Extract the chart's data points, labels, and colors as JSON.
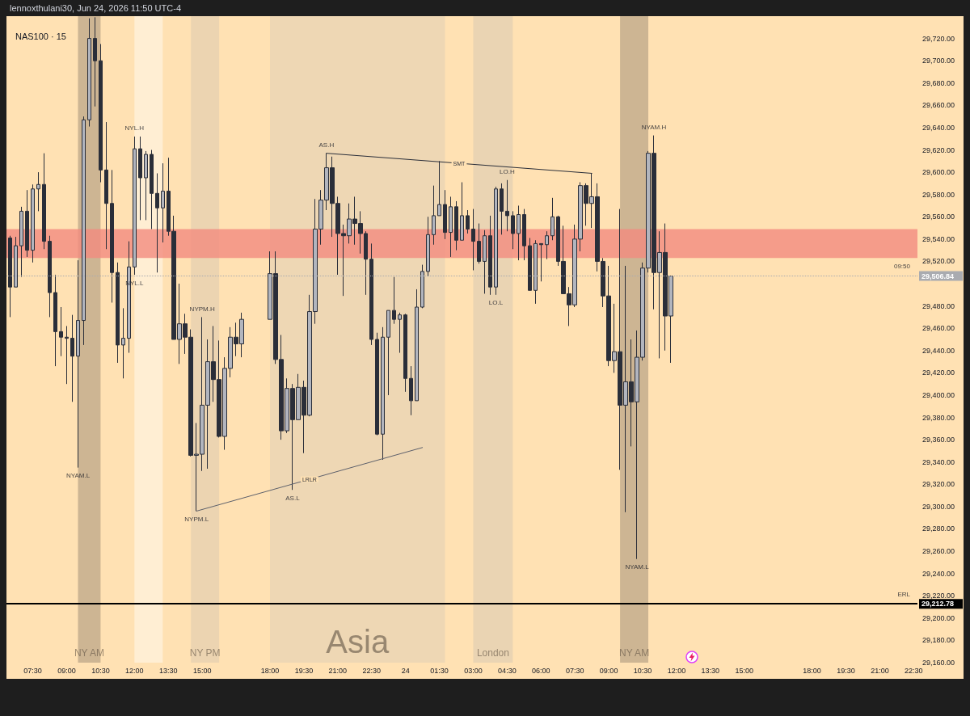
{
  "chart_data": {
    "type": "candlestick",
    "title": "NAS100 · 15",
    "subtitle": "lennoxthulani30, Jun 24, 2026 11:50 UTC-4",
    "x": [
      "2026-06-23T06:30",
      "2026-06-23T06:45",
      "2026-06-23T07:00",
      "2026-06-23T07:15",
      "2026-06-23T07:30",
      "2026-06-23T07:45",
      "2026-06-23T08:00",
      "2026-06-23T08:15",
      "2026-06-23T08:30",
      "2026-06-23T08:45",
      "2026-06-23T09:00",
      "2026-06-23T09:15",
      "2026-06-23T09:30",
      "2026-06-23T09:45",
      "2026-06-23T10:00",
      "2026-06-23T10:15",
      "2026-06-23T10:30",
      "2026-06-23T10:45",
      "2026-06-23T11:00",
      "2026-06-23T11:15",
      "2026-06-23T11:30",
      "2026-06-23T11:45",
      "2026-06-23T12:00",
      "2026-06-23T12:15",
      "2026-06-23T12:30",
      "2026-06-23T12:45",
      "2026-06-23T13:00",
      "2026-06-23T13:15",
      "2026-06-23T13:30",
      "2026-06-23T13:45",
      "2026-06-23T14:00",
      "2026-06-23T14:15",
      "2026-06-23T14:30",
      "2026-06-23T14:45",
      "2026-06-23T15:00",
      "2026-06-23T15:15",
      "2026-06-23T15:30",
      "2026-06-23T15:45",
      "2026-06-23T16:00",
      "2026-06-23T16:15",
      "2026-06-23T16:30",
      "2026-06-23T16:45",
      "2026-06-23T18:00",
      "2026-06-23T18:15",
      "2026-06-23T18:30",
      "2026-06-23T18:45",
      "2026-06-23T19:00",
      "2026-06-23T19:15",
      "2026-06-23T19:30",
      "2026-06-23T19:45",
      "2026-06-23T20:00",
      "2026-06-23T20:15",
      "2026-06-23T20:30",
      "2026-06-23T20:45",
      "2026-06-23T21:00",
      "2026-06-23T21:15",
      "2026-06-23T21:30",
      "2026-06-23T21:45",
      "2026-06-23T22:00",
      "2026-06-23T22:15",
      "2026-06-23T22:30",
      "2026-06-23T22:45",
      "2026-06-23T23:00",
      "2026-06-23T23:15",
      "2026-06-23T23:30",
      "2026-06-23T23:45",
      "2026-06-24T00:00",
      "2026-06-24T00:15",
      "2026-06-24T00:30",
      "2026-06-24T00:45",
      "2026-06-24T01:00",
      "2026-06-24T01:15",
      "2026-06-24T01:30",
      "2026-06-24T01:45",
      "2026-06-24T02:00",
      "2026-06-24T02:15",
      "2026-06-24T02:30",
      "2026-06-24T02:45",
      "2026-06-24T03:00",
      "2026-06-24T03:15",
      "2026-06-24T03:30",
      "2026-06-24T03:45",
      "2026-06-24T04:00",
      "2026-06-24T04:15",
      "2026-06-24T04:30",
      "2026-06-24T04:45",
      "2026-06-24T05:00",
      "2026-06-24T05:15",
      "2026-06-24T05:30",
      "2026-06-24T05:45",
      "2026-06-24T06:00",
      "2026-06-24T06:15",
      "2026-06-24T06:30",
      "2026-06-24T06:45",
      "2026-06-24T07:00",
      "2026-06-24T07:15",
      "2026-06-24T07:30",
      "2026-06-24T07:45",
      "2026-06-24T08:00",
      "2026-06-24T08:15",
      "2026-06-24T08:30",
      "2026-06-24T08:45",
      "2026-06-24T09:00",
      "2026-06-24T09:15",
      "2026-06-24T09:30",
      "2026-06-24T09:45",
      "2026-06-24T10:00",
      "2026-06-24T10:15",
      "2026-06-24T10:30",
      "2026-06-24T10:45",
      "2026-06-24T11:00",
      "2026-06-24T11:15",
      "2026-06-24T11:30",
      "2026-06-24T11:45"
    ],
    "ohlc": [
      [
        29541,
        29543,
        29470,
        29497
      ],
      [
        29497,
        29542,
        29497,
        29534
      ],
      [
        29534,
        29569,
        29506,
        29565
      ],
      [
        29565,
        29584,
        29524,
        29530
      ],
      [
        29530,
        29589,
        29519,
        29585
      ],
      [
        29585,
        29600,
        29565,
        29589
      ],
      [
        29589,
        29617,
        29531,
        29538
      ],
      [
        29538,
        29543,
        29470,
        29492
      ],
      [
        29492,
        29508,
        29426,
        29457
      ],
      [
        29457,
        29479,
        29435,
        29452
      ],
      [
        29452,
        29462,
        29410,
        29451
      ],
      [
        29451,
        29472,
        29394,
        29435
      ],
      [
        29435,
        29521,
        29335,
        29467
      ],
      [
        29467,
        29650,
        29445,
        29647
      ],
      [
        29647,
        29738,
        29641,
        29720
      ],
      [
        29720,
        29739,
        29659,
        29700
      ],
      [
        29700,
        29715,
        29591,
        29602
      ],
      [
        29602,
        29645,
        29531,
        29572
      ],
      [
        29572,
        29602,
        29483,
        29510
      ],
      [
        29510,
        29519,
        29429,
        29445
      ],
      [
        29445,
        29478,
        29415,
        29451
      ],
      [
        29451,
        29538,
        29438,
        29515
      ],
      [
        29515,
        29632,
        29508,
        29621
      ],
      [
        29621,
        29632,
        29557,
        29595
      ],
      [
        29595,
        29619,
        29557,
        29616
      ],
      [
        29616,
        29620,
        29549,
        29581
      ],
      [
        29581,
        29599,
        29510,
        29568
      ],
      [
        29568,
        29608,
        29537,
        29583
      ],
      [
        29583,
        29613,
        29543,
        29547
      ],
      [
        29547,
        29561,
        29450,
        29450
      ],
      [
        29450,
        29500,
        29428,
        29464
      ],
      [
        29464,
        29473,
        29437,
        29452
      ],
      [
        29452,
        29459,
        29345,
        29346
      ],
      [
        29346,
        29375,
        29296,
        29347
      ],
      [
        29347,
        29470,
        29332,
        29391
      ],
      [
        29391,
        29450,
        29334,
        29430
      ],
      [
        29430,
        29462,
        29394,
        29414
      ],
      [
        29414,
        29449,
        29362,
        29363
      ],
      [
        29363,
        29434,
        29351,
        29424
      ],
      [
        29424,
        29461,
        29416,
        29452
      ],
      [
        29452,
        29465,
        29435,
        29446
      ],
      [
        29446,
        29474,
        29434,
        29468
      ],
      [
        29468,
        29529,
        29468,
        29509
      ],
      [
        29509,
        29529,
        29428,
        29432
      ],
      [
        29432,
        29454,
        29360,
        29368
      ],
      [
        29368,
        29415,
        29366,
        29406
      ],
      [
        29406,
        29410,
        29315,
        29378
      ],
      [
        29378,
        29419,
        29378,
        29407
      ],
      [
        29407,
        29413,
        29348,
        29382
      ],
      [
        29382,
        29490,
        29381,
        29475
      ],
      [
        29475,
        29576,
        29464,
        29549
      ],
      [
        29549,
        29584,
        29535,
        29575
      ],
      [
        29575,
        29617,
        29566,
        29604
      ],
      [
        29604,
        29614,
        29542,
        29572
      ],
      [
        29572,
        29578,
        29508,
        29545
      ],
      [
        29545,
        29553,
        29489,
        29543
      ],
      [
        29543,
        29572,
        29536,
        29558
      ],
      [
        29558,
        29578,
        29535,
        29554
      ],
      [
        29554,
        29565,
        29527,
        29545
      ],
      [
        29545,
        29547,
        29490,
        29522
      ],
      [
        29522,
        29536,
        29445,
        29450
      ],
      [
        29450,
        29456,
        29364,
        29365
      ],
      [
        29365,
        29461,
        29342,
        29452
      ],
      [
        29452,
        29476,
        29400,
        29476
      ],
      [
        29476,
        29506,
        29464,
        29468
      ],
      [
        29468,
        29474,
        29438,
        29472
      ],
      [
        29472,
        29473,
        29403,
        29415
      ],
      [
        29415,
        29426,
        29382,
        29395
      ],
      [
        29395,
        29495,
        29395,
        29479
      ],
      [
        29479,
        29517,
        29478,
        29511
      ],
      [
        29511,
        29560,
        29507,
        29544
      ],
      [
        29544,
        29588,
        29535,
        29561
      ],
      [
        29561,
        29610,
        29561,
        29571
      ],
      [
        29571,
        29584,
        29540,
        29546
      ],
      [
        29546,
        29578,
        29524,
        29569
      ],
      [
        29569,
        29574,
        29530,
        29539
      ],
      [
        29539,
        29591,
        29539,
        29561
      ],
      [
        29561,
        29566,
        29545,
        29549
      ],
      [
        29549,
        29567,
        29512,
        29538
      ],
      [
        29538,
        29554,
        29518,
        29520
      ],
      [
        29520,
        29548,
        29491,
        29543
      ],
      [
        29543,
        29561,
        29490,
        29497
      ],
      [
        29497,
        29587,
        29490,
        29585
      ],
      [
        29585,
        29590,
        29544,
        29565
      ],
      [
        29565,
        29593,
        29547,
        29561
      ],
      [
        29561,
        29565,
        29531,
        29545
      ],
      [
        29545,
        29570,
        29521,
        29562
      ],
      [
        29562,
        29567,
        29521,
        29534
      ],
      [
        29534,
        29541,
        29494,
        29494
      ],
      [
        29494,
        29539,
        29482,
        29536
      ],
      [
        29536,
        29536,
        29502,
        29535
      ],
      [
        29535,
        29547,
        29522,
        29543
      ],
      [
        29543,
        29577,
        29539,
        29560
      ],
      [
        29560,
        29561,
        29516,
        29520
      ],
      [
        29520,
        29552,
        29491,
        29491
      ],
      [
        29491,
        29497,
        29462,
        29481
      ],
      [
        29481,
        29553,
        29479,
        29540
      ],
      [
        29540,
        29591,
        29529,
        29588
      ],
      [
        29588,
        29590,
        29552,
        29572
      ],
      [
        29572,
        29599,
        29550,
        29578
      ],
      [
        29578,
        29590,
        29511,
        29520
      ],
      [
        29520,
        29523,
        29479,
        29489
      ],
      [
        29489,
        29516,
        29426,
        29431
      ],
      [
        29431,
        29482,
        29420,
        29439
      ],
      [
        29439,
        29567,
        29333,
        29391
      ],
      [
        29391,
        29516,
        29295,
        29412
      ],
      [
        29412,
        29450,
        29354,
        29394
      ],
      [
        29394,
        29458,
        29253,
        29434
      ],
      [
        29434,
        29519,
        29431,
        29514
      ],
      [
        29514,
        29619,
        29510,
        29617
      ],
      [
        29617,
        29633,
        29477,
        29510
      ],
      [
        29510,
        29547,
        29433,
        29528
      ],
      [
        29528,
        29554,
        29440,
        29471
      ],
      [
        29471,
        29506.84,
        29429,
        29506.84
      ]
    ],
    "series": [
      {
        "type": "line",
        "name": "SMT",
        "color": "#2a2e39",
        "x": [
          "2026-06-23T20:30",
          "2026-06-24T08:15"
        ],
        "values": [
          29617,
          29599
        ]
      },
      {
        "type": "line",
        "name": "LRLR",
        "color": "#5d606b",
        "x": [
          "2026-06-23T14:45",
          "2026-06-24T00:45"
        ],
        "values": [
          29296,
          29353
        ]
      }
    ],
    "xlim": [
      "2026-06-23T06:20",
      "2026-06-24T22:40"
    ],
    "ylim": [
      29160,
      29740
    ],
    "yticks": [
      {
        "value": 29160,
        "label": "29,160.00"
      },
      {
        "value": 29180,
        "label": "29,180.00"
      },
      {
        "value": 29200,
        "label": "29,200.00"
      },
      {
        "value": 29220,
        "label": "29,220.00"
      },
      {
        "value": 29240,
        "label": "29,240.00"
      },
      {
        "value": 29260,
        "label": "29,260.00"
      },
      {
        "value": 29280,
        "label": "29,280.00"
      },
      {
        "value": 29300,
        "label": "29,300.00"
      },
      {
        "value": 29320,
        "label": "29,320.00"
      },
      {
        "value": 29340,
        "label": "29,340.00"
      },
      {
        "value": 29360,
        "label": "29,360.00"
      },
      {
        "value": 29380,
        "label": "29,380.00"
      },
      {
        "value": 29400,
        "label": "29,400.00"
      },
      {
        "value": 29420,
        "label": "29,420.00"
      },
      {
        "value": 29440,
        "label": "29,440.00"
      },
      {
        "value": 29460,
        "label": "29,460.00"
      },
      {
        "value": 29480,
        "label": "29,480.00"
      },
      {
        "value": 29500,
        "label": null
      },
      {
        "value": 29520,
        "label": "29,520.00"
      },
      {
        "value": 29540,
        "label": "29,540.00"
      },
      {
        "value": 29560,
        "label": "29,560.00"
      },
      {
        "value": 29580,
        "label": "29,580.00"
      },
      {
        "value": 29600,
        "label": "29,600.00"
      },
      {
        "value": 29620,
        "label": "29,620.00"
      },
      {
        "value": 29640,
        "label": "29,640.00"
      },
      {
        "value": 29660,
        "label": "29,660.00"
      },
      {
        "value": 29680,
        "label": "29,680.00"
      },
      {
        "value": 29700,
        "label": "29,700.00"
      },
      {
        "value": 29720,
        "label": "29,720.00"
      }
    ],
    "xticks": [
      {
        "value": "2026-06-23T07:30",
        "label": "07:30"
      },
      {
        "value": "2026-06-23T09:00",
        "label": "09:00"
      },
      {
        "value": "2026-06-23T10:30",
        "label": "10:30"
      },
      {
        "value": "2026-06-23T12:00",
        "label": "12:00"
      },
      {
        "value": "2026-06-23T13:30",
        "label": "13:30"
      },
      {
        "value": "2026-06-23T15:00",
        "label": "15:00"
      },
      {
        "value": "2026-06-23T18:00",
        "label": "18:00"
      },
      {
        "value": "2026-06-23T19:30",
        "label": "19:30"
      },
      {
        "value": "2026-06-23T21:00",
        "label": "21:00"
      },
      {
        "value": "2026-06-23T22:30",
        "label": "22:30"
      },
      {
        "value": "2026-06-24T00:00",
        "label": "24"
      },
      {
        "value": "2026-06-24T01:30",
        "label": "01:30"
      },
      {
        "value": "2026-06-24T03:00",
        "label": "03:00"
      },
      {
        "value": "2026-06-24T04:30",
        "label": "04:30"
      },
      {
        "value": "2026-06-24T06:00",
        "label": "06:00"
      },
      {
        "value": "2026-06-24T07:30",
        "label": "07:30"
      },
      {
        "value": "2026-06-24T09:00",
        "label": "09:00"
      },
      {
        "value": "2026-06-24T10:30",
        "label": "10:30"
      },
      {
        "value": "2026-06-24T12:00",
        "label": "12:00"
      },
      {
        "value": "2026-06-24T13:30",
        "label": "13:30"
      },
      {
        "value": "2026-06-24T15:00",
        "label": "15:00"
      },
      {
        "value": "2026-06-24T18:00",
        "label": "18:00"
      },
      {
        "value": "2026-06-24T19:30",
        "label": "19:30"
      },
      {
        "value": "2026-06-24T21:00",
        "label": "21:00"
      },
      {
        "value": "2026-06-24T22:30",
        "label": "22:30"
      }
    ],
    "bands": [
      {
        "axis": "x",
        "from": "2026-06-23T12:00",
        "to": "2026-06-23T13:15",
        "label": null,
        "color": "#fff0d6"
      },
      {
        "axis": "x",
        "from": "2026-06-23T09:30",
        "to": "2026-06-23T10:30",
        "label": "NY AM",
        "color": "#c8b08f"
      },
      {
        "axis": "x",
        "from": "2026-06-23T14:30",
        "to": "2026-06-23T15:45",
        "label": "NY PM",
        "color": "#ead3b0"
      },
      {
        "axis": "x",
        "from": "2026-06-23T18:00",
        "to": "2026-06-24T01:45",
        "label": "Asia",
        "color": "#ecd6b4"
      },
      {
        "axis": "x",
        "from": "2026-06-24T03:00",
        "to": "2026-06-24T04:45",
        "label": "London",
        "color": "#e8d3b3"
      },
      {
        "axis": "x",
        "from": "2026-06-24T09:30",
        "to": "2026-06-24T10:45",
        "label": "NY AM",
        "color": "#c8b08f"
      },
      {
        "axis": "y",
        "from": 29523,
        "to": 29549,
        "label": null,
        "color": "#f28b7f"
      }
    ],
    "ref_lines": [
      {
        "axis": "y",
        "value": 29212.78,
        "label": "29,212.78",
        "color": "#000000",
        "line_style": "solid"
      },
      {
        "axis": "y",
        "value": 29506.84,
        "label": "29,506.84",
        "color": "#a9abb0",
        "line_style": "dotted"
      }
    ],
    "annotations": [
      {
        "text": "NYL.H",
        "x": "2026-06-23T12:00",
        "y": 29632
      },
      {
        "text": "NYL.L",
        "x": "2026-06-23T12:00",
        "y": 29508
      },
      {
        "text": "NYAM.L",
        "x": "2026-06-23T09:30",
        "y": 29335
      },
      {
        "text": "NYPM.H",
        "x": "2026-06-23T15:00",
        "y": 29470
      },
      {
        "text": "NYPM.L",
        "x": "2026-06-23T14:45",
        "y": 29296
      },
      {
        "text": "AS.H",
        "x": "2026-06-23T20:30",
        "y": 29617
      },
      {
        "text": "AS.L",
        "x": "2026-06-23T19:00",
        "y": 29315
      },
      {
        "text": "LO.H",
        "x": "2026-06-24T04:30",
        "y": 29593
      },
      {
        "text": "LO.L",
        "x": "2026-06-24T04:00",
        "y": 29490
      },
      {
        "text": "NYAM.H",
        "x": "2026-06-24T11:00",
        "y": 29633
      },
      {
        "text": "NYAM.L",
        "x": "2026-06-24T10:15",
        "y": 29253
      },
      {
        "text": "ERL",
        "y": 29212.78
      },
      {
        "text": "09:50",
        "y": 29506.84
      }
    ]
  }
}
